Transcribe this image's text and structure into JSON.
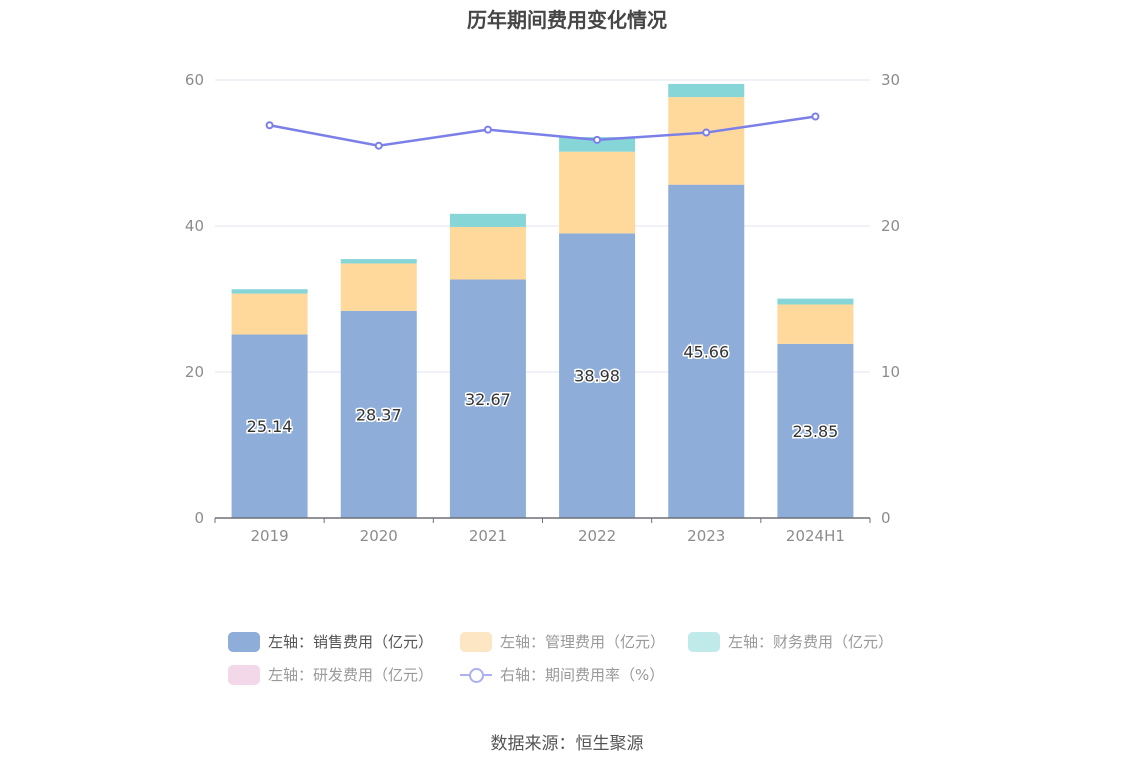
{
  "title": "历年期间费用变化情况",
  "source": "数据来源：恒生聚源",
  "chart_data": {
    "type": "bar",
    "stacked": true,
    "title": "历年期间费用变化情况",
    "categories": [
      "2019",
      "2020",
      "2021",
      "2022",
      "2023",
      "2024H1"
    ],
    "left_axis": {
      "min": 0,
      "max": 60,
      "ticks": [
        "0",
        "20",
        "40",
        "60"
      ]
    },
    "right_axis": {
      "min": 0,
      "max": 30,
      "ticks": [
        "0",
        "10",
        "20",
        "30"
      ]
    },
    "series": [
      {
        "name": "左轴：销售费用（亿元）",
        "axis": "left",
        "color": "#8eadd9",
        "values": [
          25.14,
          28.37,
          32.67,
          38.98,
          45.66,
          23.85
        ],
        "labels": [
          "25.14",
          "28.37",
          "32.67",
          "38.98",
          "45.66",
          "23.85"
        ]
      },
      {
        "name": "左轴：管理费用（亿元）",
        "axis": "left",
        "color": "#ffd99c",
        "values": [
          5.6,
          6.5,
          7.2,
          11.2,
          12.0,
          5.4
        ]
      },
      {
        "name": "左轴：财务费用（亿元）",
        "axis": "left",
        "color": "#86d5d7",
        "values": [
          0.6,
          0.6,
          1.8,
          2.0,
          1.8,
          0.8
        ]
      },
      {
        "name": "左轴：研发费用（亿元）",
        "axis": "left",
        "color": "#f3d2e8",
        "values": [
          0,
          0,
          0,
          0,
          0,
          0
        ]
      },
      {
        "name": "右轴：期间费用率（%）",
        "axis": "right",
        "type": "line",
        "color": "#7b7fe8",
        "values": [
          26.9,
          25.5,
          26.6,
          25.9,
          26.4,
          27.5
        ]
      }
    ]
  },
  "legend": {
    "colors": [
      "#8eadd9",
      "#fde6c3",
      "#c0e9ea",
      "#f3d8ea",
      "#aab0f0"
    ]
  }
}
